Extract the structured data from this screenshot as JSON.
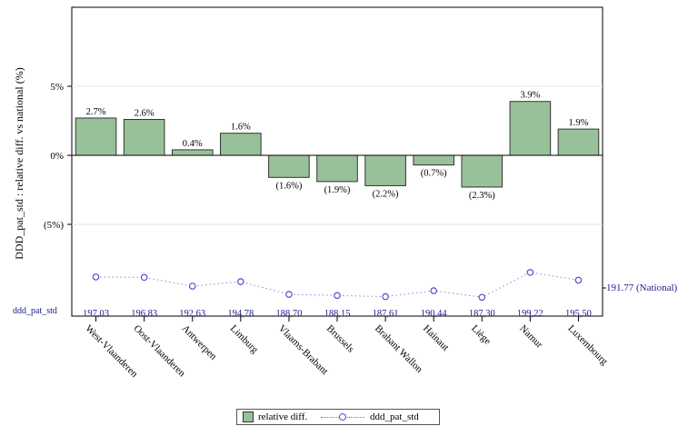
{
  "chart_data": {
    "type": "bar",
    "ylabel": "DDD_pat_std : relative diff. vs national (%)",
    "ytick_labels": [
      "5%",
      "0%",
      "(5%)"
    ],
    "ylim": [
      -0.12,
      0.105
    ],
    "grid": true,
    "categories": [
      "West-Vlaanderen",
      "Oost-Vlaanderen",
      "Antwerpen",
      "Limburg",
      "Vlaams-Brabant",
      "Brussels",
      "Brabant Wallon",
      "Hainaut",
      "Liège",
      "Namur",
      "Luxembourg"
    ],
    "series": [
      {
        "name": "relative diff.",
        "type": "bar",
        "values": [
          0.027,
          0.026,
          0.004,
          0.016,
          -0.016,
          -0.019,
          -0.022,
          -0.007,
          -0.023,
          0.039,
          0.019
        ],
        "labels": [
          "2.7%",
          "2.6%",
          "0.4%",
          "1.6%",
          "(1.6%)",
          "(1.9%)",
          "(2.2%)",
          "(0.7%)",
          "(2.3%)",
          "3.9%",
          "1.9%"
        ],
        "color": "#99c199"
      },
      {
        "name": "ddd_pat_std",
        "type": "line",
        "values": [
          197.03,
          196.83,
          192.63,
          194.78,
          188.7,
          188.15,
          187.61,
          190.44,
          187.3,
          199.22,
          195.5
        ],
        "labels": [
          "197,03",
          "196,83",
          "192,63",
          "194,78",
          "188,70",
          "188,15",
          "187,61",
          "190,44",
          "187,30",
          "199,22",
          "195,50"
        ],
        "color": "#5050d0"
      }
    ],
    "table_row_label": "ddd_pat_std",
    "reference_label": "191.77 (National)",
    "legend": {
      "position": "bottom",
      "items": [
        "relative diff.",
        "ddd_pat_std"
      ]
    }
  }
}
